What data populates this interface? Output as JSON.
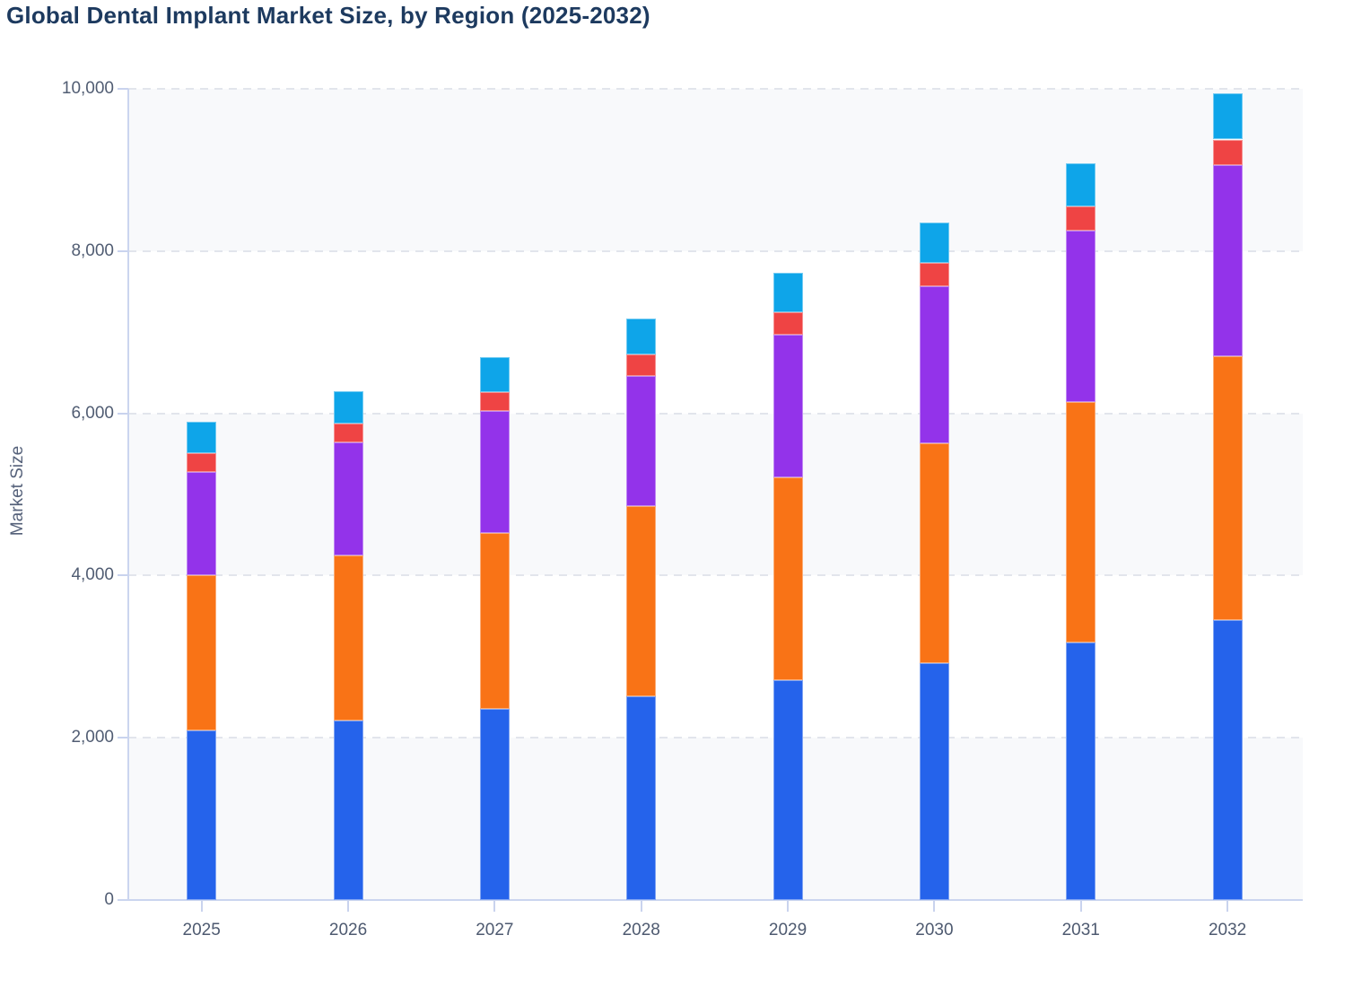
{
  "chart_data": {
    "type": "bar",
    "stacked": true,
    "title": "Global Dental Implant Market Size, by Region (2025-2032)",
    "title_color": "#1d3a5f",
    "xlabel": "",
    "ylabel": "Market Size",
    "ylim": [
      0,
      10000
    ],
    "y_ticks": [
      {
        "value": 0,
        "label": "0"
      },
      {
        "value": 2000,
        "label": "2,000"
      },
      {
        "value": 4000,
        "label": "4,000"
      },
      {
        "value": 6000,
        "label": "6,000"
      },
      {
        "value": 8000,
        "label": "8,000"
      },
      {
        "value": 10000,
        "label": "10,000"
      }
    ],
    "categories": [
      "2025",
      "2026",
      "2027",
      "2028",
      "2029",
      "2030",
      "2031",
      "2032"
    ],
    "series": [
      {
        "name": "blue-bottom-segment",
        "color": "#2563eb",
        "values": [
          2090,
          2210,
          2360,
          2515,
          2705,
          2915,
          3170,
          3455
        ]
      },
      {
        "name": "orange-segment",
        "color": "#f97316",
        "values": [
          1910,
          2040,
          2165,
          2340,
          2500,
          2720,
          2970,
          3245
        ]
      },
      {
        "name": "purple-segment",
        "color": "#9333ea",
        "values": [
          1280,
          1390,
          1505,
          1610,
          1765,
          1930,
          2110,
          2355
        ]
      },
      {
        "name": "red-segment",
        "color": "#ef4444",
        "values": [
          225,
          230,
          235,
          260,
          275,
          290,
          305,
          320
        ]
      },
      {
        "name": "cyan-top-segment",
        "color": "#0ea5e9",
        "values": [
          390,
          400,
          425,
          445,
          485,
          500,
          530,
          575
        ]
      }
    ],
    "stack_totals": [
      5895,
      6270,
      6690,
      7170,
      7730,
      8355,
      9085,
      9950
    ],
    "legend_position": "none",
    "grid": "horizontal dashed lines every 2,000",
    "plot_background": "alternating horizontal bands (#f8f9fb / #ffffff) per 2,000-unit interval"
  }
}
